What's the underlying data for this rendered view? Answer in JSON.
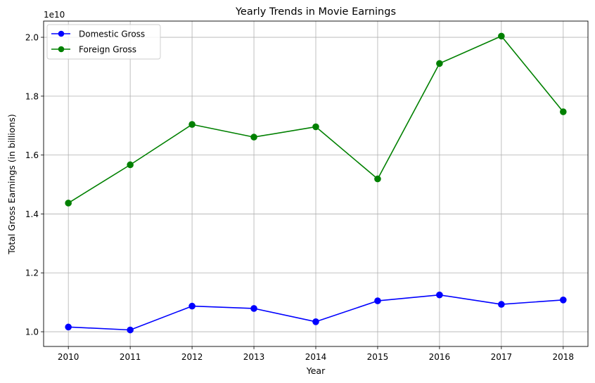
{
  "chart_data": {
    "type": "line",
    "title": "Yearly Trends in Movie Earnings",
    "xlabel": "Year",
    "ylabel": "Total Gross Earnings (in billions)",
    "y_multiplier_label": "1e10",
    "x": [
      2010,
      2011,
      2012,
      2013,
      2014,
      2015,
      2016,
      2017,
      2018
    ],
    "x_tick_labels": [
      "2010",
      "2011",
      "2012",
      "2013",
      "2014",
      "2015",
      "2016",
      "2017",
      "2018"
    ],
    "y_ticks": [
      1.0,
      1.2,
      1.4,
      1.6,
      1.8,
      2.0
    ],
    "y_tick_labels": [
      "1.0",
      "1.2",
      "1.4",
      "1.6",
      "1.8",
      "2.0"
    ],
    "xlim": [
      2009.6,
      2018.4
    ],
    "ylim": [
      0.95,
      2.055
    ],
    "grid": true,
    "legend_position": "top-left",
    "series": [
      {
        "name": "Domestic Gross",
        "color": "#0000ff",
        "marker": "circle",
        "values": [
          1.016,
          1.006,
          1.087,
          1.079,
          1.034,
          1.105,
          1.125,
          1.093,
          1.108
        ]
      },
      {
        "name": "Foreign Gross",
        "color": "#008000",
        "marker": "circle",
        "values": [
          1.437,
          1.567,
          1.704,
          1.661,
          1.696,
          1.519,
          1.911,
          2.004,
          1.747
        ]
      }
    ]
  }
}
